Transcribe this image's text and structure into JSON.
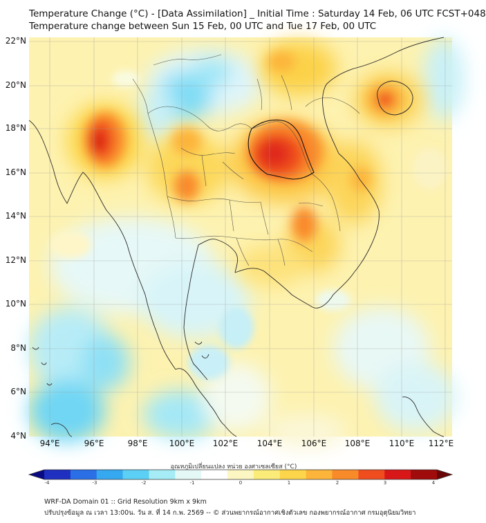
{
  "header": {
    "title_line1": "Temperature Change (°C) - [Data Assimilation] _ Initial Time : Saturday 14 Feb, 06 UTC FCST+048",
    "title_line2": "Temperature change between Sun 15 Feb, 00 UTC and Tue 17 Feb, 00 UTC"
  },
  "map": {
    "lat_labels": [
      "22°N",
      "20°N",
      "18°N",
      "16°N",
      "14°N",
      "12°N",
      "10°N",
      "8°N",
      "6°N",
      "4°N"
    ],
    "lon_labels": [
      "94°E",
      "96°E",
      "98°E",
      "100°E",
      "102°E",
      "104°E",
      "106°E",
      "108°E",
      "110°E",
      "112°E"
    ]
  },
  "colorbar": {
    "label": "อุณหภูมิเปลี่ยนแปลง หน่วย องศาเซลเซียส (°C)",
    "ticks": [
      "-4",
      "-3",
      "-2",
      "-1",
      "0",
      "1",
      "2",
      "3",
      "4"
    ],
    "colors": [
      "#0a0a82",
      "#1f2fc0",
      "#2a6fe6",
      "#36a8f0",
      "#5cd0f4",
      "#a6ecf6",
      "#e4f8f6",
      "#ffffff",
      "#fcf6c2",
      "#fbec7a",
      "#fcd54a",
      "#fcb43a",
      "#f98a2a",
      "#ef4d1e",
      "#d81818",
      "#a00c0c",
      "#6a0606"
    ]
  },
  "footer": {
    "line1": "WRF-DA Domain 01 :: Grid Resolution 9km x 9km",
    "line2": "ปรับปรุงข้อมูล ณ เวลา 13:00น. วัน ส. ที่ 14 ก.พ. 2569 -- © ส่วนพยากรณ์อากาศเชิงตัวเลข กองพยากรณ์อากาศ กรมอุตุนิยมวิทยา"
  }
}
